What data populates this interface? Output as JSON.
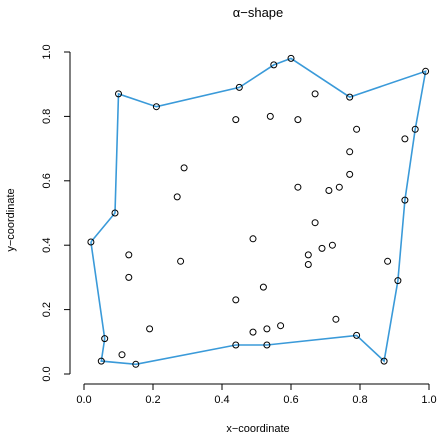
{
  "chart_data": {
    "type": "scatter",
    "title": "α−shape",
    "xlabel": "x−coordinate",
    "ylabel": "y−coordinate",
    "xlim": [
      0.0,
      1.0
    ],
    "ylim": [
      0.0,
      1.0
    ],
    "x_ticks": [
      "0.0",
      "0.2",
      "0.4",
      "0.6",
      "0.8",
      "1.0"
    ],
    "y_ticks": [
      "0.0",
      "0.2",
      "0.4",
      "0.6",
      "0.8",
      "1.0"
    ],
    "grid": false,
    "legend": "none",
    "colors": {
      "hull": "#3a9ad9",
      "points": "#000000"
    },
    "points": [
      [
        0.02,
        0.41
      ],
      [
        0.09,
        0.5
      ],
      [
        0.1,
        0.87
      ],
      [
        0.21,
        0.83
      ],
      [
        0.45,
        0.89
      ],
      [
        0.55,
        0.96
      ],
      [
        0.6,
        0.98
      ],
      [
        0.77,
        0.86
      ],
      [
        0.99,
        0.94
      ],
      [
        0.96,
        0.76
      ],
      [
        0.93,
        0.54
      ],
      [
        0.91,
        0.29
      ],
      [
        0.87,
        0.04
      ],
      [
        0.79,
        0.12
      ],
      [
        0.53,
        0.09
      ],
      [
        0.44,
        0.09
      ],
      [
        0.15,
        0.03
      ],
      [
        0.05,
        0.04
      ],
      [
        0.06,
        0.11
      ],
      [
        0.44,
        0.79
      ],
      [
        0.54,
        0.8
      ],
      [
        0.62,
        0.79
      ],
      [
        0.67,
        0.87
      ],
      [
        0.79,
        0.76
      ],
      [
        0.93,
        0.73
      ],
      [
        0.77,
        0.69
      ],
      [
        0.77,
        0.62
      ],
      [
        0.74,
        0.58
      ],
      [
        0.71,
        0.57
      ],
      [
        0.62,
        0.58
      ],
      [
        0.29,
        0.64
      ],
      [
        0.27,
        0.55
      ],
      [
        0.28,
        0.35
      ],
      [
        0.13,
        0.37
      ],
      [
        0.13,
        0.3
      ],
      [
        0.49,
        0.42
      ],
      [
        0.52,
        0.27
      ],
      [
        0.44,
        0.23
      ],
      [
        0.67,
        0.47
      ],
      [
        0.65,
        0.37
      ],
      [
        0.65,
        0.34
      ],
      [
        0.69,
        0.39
      ],
      [
        0.72,
        0.4
      ],
      [
        0.88,
        0.35
      ],
      [
        0.73,
        0.17
      ],
      [
        0.57,
        0.15
      ],
      [
        0.53,
        0.14
      ],
      [
        0.49,
        0.13
      ],
      [
        0.11,
        0.06
      ],
      [
        0.19,
        0.14
      ]
    ],
    "hull": [
      [
        0.02,
        0.41
      ],
      [
        0.09,
        0.5
      ],
      [
        0.1,
        0.87
      ],
      [
        0.21,
        0.83
      ],
      [
        0.45,
        0.89
      ],
      [
        0.55,
        0.96
      ],
      [
        0.6,
        0.98
      ],
      [
        0.77,
        0.86
      ],
      [
        0.99,
        0.94
      ],
      [
        0.96,
        0.76
      ],
      [
        0.93,
        0.54
      ],
      [
        0.91,
        0.29
      ],
      [
        0.87,
        0.04
      ],
      [
        0.79,
        0.12
      ],
      [
        0.53,
        0.09
      ],
      [
        0.44,
        0.09
      ],
      [
        0.15,
        0.03
      ],
      [
        0.05,
        0.04
      ],
      [
        0.06,
        0.11
      ],
      [
        0.02,
        0.41
      ]
    ]
  }
}
